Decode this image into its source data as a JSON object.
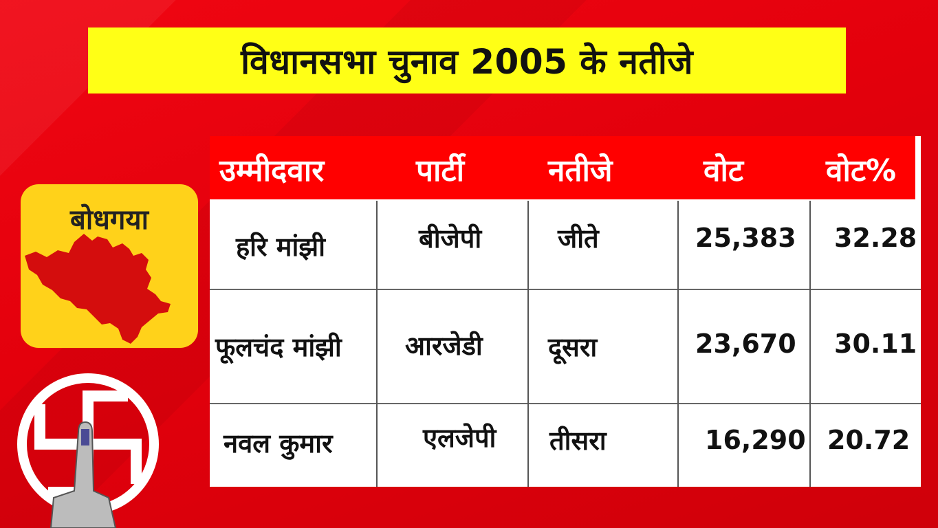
{
  "title": "विधानसभा चुनाव 2005 के नतीजे",
  "constituency": "बोधगया",
  "table": {
    "headers": [
      "उम्मीदवार",
      "पार्टी",
      "नतीजे",
      "वोट",
      "वोट%"
    ],
    "rows": [
      {
        "candidate": "हरि मांझी",
        "party": "बीजेपी",
        "result": "जीते",
        "votes": "25,383",
        "vote_pct": "32.28"
      },
      {
        "candidate": "फूलचंद मांझी",
        "party": "आरजेडी",
        "result": "दूसरा",
        "votes": "23,670",
        "vote_pct": "30.11"
      },
      {
        "candidate": "नवल कुमार",
        "party": "एलजेपी",
        "result": "तीसरा",
        "votes": "16,290",
        "vote_pct": "20.72"
      }
    ]
  },
  "colors": {
    "background": "#e8000e",
    "title_bar": "#ffff16",
    "header_bg": "#ff0000",
    "card_bg": "#ffd21a",
    "map_fill": "#d40d0d"
  },
  "icons": [
    "map-icon",
    "ballot-symbol-icon",
    "inked-finger-icon"
  ]
}
